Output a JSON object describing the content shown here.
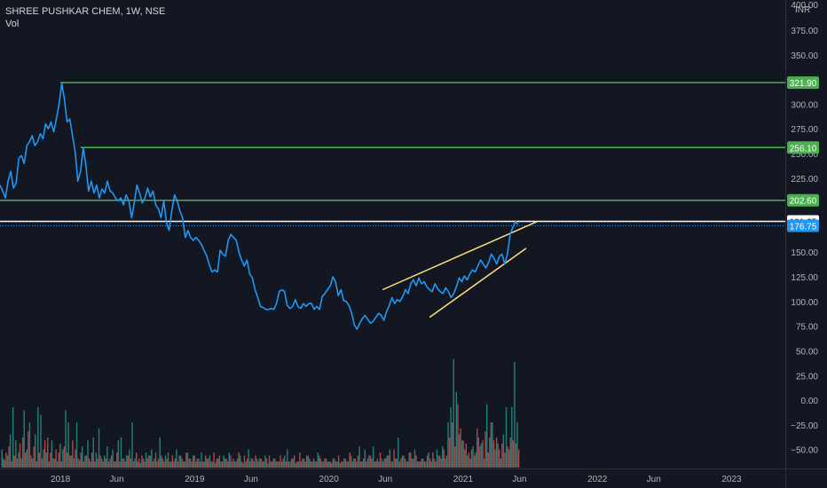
{
  "header": {
    "symbol_line": "SHREE PUSHKAR CHEM, 1W, NSE",
    "volume_label": "Vol",
    "currency": "INR"
  },
  "colors": {
    "price_line": "#2196f3",
    "level_line": "#4caf50",
    "current_line": "#ffffff",
    "trend_line": "#ffe082",
    "vol_up": "#26a69a",
    "vol_down": "#ef5350"
  },
  "chart_data": {
    "type": "line",
    "title": "SHREE PUSHKAR CHEM, 1W, NSE",
    "price_axis": {
      "ticks": [
        375,
        350,
        325,
        300,
        275,
        250,
        225,
        200,
        175,
        150,
        125,
        100,
        75,
        50,
        25,
        0,
        -25,
        -50
      ],
      "tick_labels": [
        "375.00",
        "350.00",
        "325.00",
        "300.00",
        "275.00",
        "250.00",
        "225.00",
        "200.00",
        "175.00",
        "150.00",
        "125.00",
        "100.00",
        "75.00",
        "50.00",
        "25.00",
        "0.00",
        "−25.00",
        "−50.00"
      ],
      "top_label": "400.00",
      "range": [
        -62,
        402
      ]
    },
    "time_axis": {
      "labels": [
        {
          "label": "2018",
          "t": 2018.0
        },
        {
          "label": "Jun",
          "t": 2018.42
        },
        {
          "label": "2019",
          "t": 2019.0
        },
        {
          "label": "Jun",
          "t": 2019.42
        },
        {
          "label": "2020",
          "t": 2020.0
        },
        {
          "label": "Jun",
          "t": 2020.42
        },
        {
          "label": "2021",
          "t": 2021.0
        },
        {
          "label": "Jun",
          "t": 2021.42
        },
        {
          "label": "2022",
          "t": 2022.0
        },
        {
          "label": "Jun",
          "t": 2022.42
        },
        {
          "label": "2023",
          "t": 2023.0
        }
      ],
      "range": [
        2017.55,
        2023.4
      ]
    },
    "horizontal_levels": [
      {
        "value": 321.9,
        "label": "321.90",
        "start_t": 2018.0
      },
      {
        "value": 256.1,
        "label": "256.10",
        "start_t": 2018.15
      },
      {
        "value": 202.6,
        "label": "202.60",
        "start_t": 2017.55
      }
    ],
    "current_price": {
      "value": 181.25,
      "label": "181.25"
    },
    "last_close": {
      "value": 176.75,
      "label": "176.75"
    },
    "trend_lines": [
      {
        "from": {
          "t": 2020.4,
          "v": 112
        },
        "to": {
          "t": 2021.55,
          "v": 181
        }
      },
      {
        "from": {
          "t": 2020.75,
          "v": 84
        },
        "to": {
          "t": 2021.47,
          "v": 154
        }
      }
    ],
    "series": [
      {
        "t": [
          2017.55,
          2017.57,
          2017.59,
          2017.61,
          2017.63,
          2017.65,
          2017.67,
          2017.69,
          2017.71,
          2017.73,
          2017.75,
          2017.77,
          2017.79,
          2017.81,
          2017.83,
          2017.85,
          2017.87,
          2017.89,
          2017.91,
          2017.93,
          2017.95,
          2017.97,
          2017.99,
          2018.01,
          2018.03,
          2018.05,
          2018.07,
          2018.09,
          2018.11,
          2018.13,
          2018.15,
          2018.17,
          2018.19,
          2018.21,
          2018.23,
          2018.25,
          2018.27,
          2018.29,
          2018.31,
          2018.33,
          2018.35,
          2018.37,
          2018.39,
          2018.41,
          2018.43,
          2018.45,
          2018.47,
          2018.49,
          2018.51,
          2018.53,
          2018.55,
          2018.57,
          2018.59,
          2018.61,
          2018.63,
          2018.65,
          2018.67,
          2018.69,
          2018.71,
          2018.73,
          2018.75,
          2018.77,
          2018.79,
          2018.81,
          2018.83,
          2018.85,
          2018.87,
          2018.89,
          2018.91,
          2018.93,
          2018.95,
          2018.97,
          2018.99,
          2019.01,
          2019.03,
          2019.05,
          2019.07,
          2019.09,
          2019.11,
          2019.13,
          2019.15,
          2019.17,
          2019.19,
          2019.21,
          2019.23,
          2019.25,
          2019.27,
          2019.29,
          2019.31,
          2019.33,
          2019.35,
          2019.37,
          2019.39,
          2019.41,
          2019.43,
          2019.45,
          2019.47,
          2019.49,
          2019.51,
          2019.53,
          2019.55,
          2019.57,
          2019.59,
          2019.61,
          2019.63,
          2019.65,
          2019.67,
          2019.69,
          2019.71,
          2019.73,
          2019.75,
          2019.77,
          2019.79,
          2019.81,
          2019.83,
          2019.85,
          2019.87,
          2019.89,
          2019.91,
          2019.93,
          2019.95,
          2019.97,
          2019.99,
          2020.01,
          2020.03,
          2020.05,
          2020.07,
          2020.09,
          2020.11,
          2020.13,
          2020.15,
          2020.17,
          2020.19,
          2020.21,
          2020.23,
          2020.25,
          2020.27,
          2020.29,
          2020.31,
          2020.33,
          2020.35,
          2020.37,
          2020.39,
          2020.41,
          2020.43,
          2020.45,
          2020.47,
          2020.49,
          2020.51,
          2020.53,
          2020.55,
          2020.57,
          2020.59,
          2020.61,
          2020.63,
          2020.65,
          2020.67,
          2020.69,
          2020.71,
          2020.73,
          2020.75,
          2020.77,
          2020.79,
          2020.81,
          2020.83,
          2020.85,
          2020.87,
          2020.89,
          2020.91,
          2020.93,
          2020.95,
          2020.97,
          2020.99,
          2021.01,
          2021.03,
          2021.05,
          2021.07,
          2021.09,
          2021.11,
          2021.13,
          2021.15,
          2021.17,
          2021.19,
          2021.21,
          2021.23,
          2021.25,
          2021.27,
          2021.29,
          2021.31,
          2021.33,
          2021.35,
          2021.37,
          2021.39,
          2021.41
        ],
        "values": [
          218,
          212,
          205,
          222,
          232,
          215,
          220,
          245,
          248,
          240,
          258,
          262,
          268,
          258,
          262,
          270,
          265,
          280,
          275,
          282,
          272,
          285,
          300,
          321,
          305,
          282,
          285,
          268,
          252,
          222,
          232,
          256,
          238,
          212,
          222,
          210,
          218,
          205,
          214,
          210,
          222,
          212,
          210,
          205,
          202,
          205,
          198,
          208,
          202,
          185,
          200,
          218,
          210,
          200,
          205,
          215,
          206,
          212,
          198,
          194,
          185,
          202,
          180,
          172,
          192,
          208,
          202,
          192,
          185,
          165,
          172,
          165,
          162,
          165,
          162,
          158,
          152,
          146,
          137,
          130,
          132,
          130,
          152,
          148,
          146,
          162,
          168,
          165,
          162,
          150,
          142,
          136,
          142,
          128,
          124,
          112,
          104,
          95,
          94,
          92,
          92,
          93,
          92,
          98,
          110,
          112,
          110,
          96,
          93,
          95,
          102,
          95,
          93,
          98,
          95,
          98,
          98,
          92,
          95,
          92,
          105,
          108,
          112,
          116,
          125,
          120,
          106,
          112,
          101,
          100,
          96,
          88,
          76,
          72,
          78,
          83,
          86,
          82,
          78,
          80,
          84,
          88,
          86,
          81,
          90,
          96,
          104,
          98,
          102,
          100,
          105,
          112,
          108,
          118,
          122,
          116,
          124,
          118,
          120,
          115,
          112,
          110,
          118,
          113,
          110,
          108,
          114,
          110,
          104,
          108,
          115,
          124,
          120,
          126,
          122,
          128,
          132,
          130,
          136,
          142,
          138,
          134,
          140,
          148,
          144,
          138,
          146,
          148,
          138,
          148,
          168,
          175,
          181,
          178
        ]
      }
    ],
    "volume": {
      "up": [
        12,
        5,
        8,
        22,
        40,
        18,
        10,
        6,
        38,
        12,
        30,
        6,
        22,
        40,
        35,
        12,
        10,
        4,
        18,
        6,
        4,
        16,
        12,
        38,
        30,
        8,
        6,
        30,
        5,
        14,
        8,
        18,
        4,
        20,
        10,
        26,
        6,
        8,
        14,
        6,
        12,
        4,
        18,
        20,
        6,
        8,
        12,
        30,
        6,
        4,
        3,
        6,
        10,
        8,
        12,
        6,
        4,
        20,
        6,
        8,
        10,
        4,
        4,
        12,
        8,
        6,
        4,
        10,
        6,
        8,
        4,
        6,
        10,
        4,
        6,
        8,
        4,
        3,
        6,
        4,
        8,
        6,
        10,
        4,
        4,
        6,
        8,
        3,
        4,
        12,
        6,
        4,
        6,
        6,
        4,
        8,
        3,
        4,
        6,
        4,
        4,
        4,
        8,
        12,
        4,
        6,
        3,
        4,
        4,
        6,
        8,
        6,
        4,
        4,
        10,
        6,
        4,
        6,
        4,
        3,
        6,
        4,
        3,
        4,
        6,
        4,
        8,
        6,
        4,
        14,
        4,
        12,
        6,
        8,
        14,
        4,
        4,
        6,
        6,
        8,
        12,
        4,
        6,
        20,
        6,
        8,
        4,
        10,
        6,
        12,
        4,
        4,
        6,
        4,
        10,
        4,
        6,
        12,
        8,
        14,
        6,
        30,
        40,
        72,
        50,
        22,
        18,
        12,
        8,
        6,
        14,
        10,
        20,
        16,
        6,
        42,
        20,
        30,
        12,
        16,
        6,
        22,
        40,
        12,
        40,
        70,
        30
      ],
      "down": [
        6,
        10,
        14,
        4,
        8,
        6,
        16,
        20,
        10,
        24,
        8,
        14,
        4,
        10,
        6,
        18,
        20,
        10,
        6,
        12,
        10,
        4,
        14,
        10,
        8,
        18,
        12,
        6,
        10,
        4,
        8,
        6,
        10,
        4,
        6,
        8,
        4,
        6,
        4,
        8,
        4,
        10,
        4,
        6,
        4,
        8,
        6,
        4,
        10,
        6,
        8,
        4,
        6,
        8,
        4,
        10,
        6,
        8,
        4,
        6,
        4,
        8,
        6,
        4,
        8,
        4,
        10,
        6,
        4,
        8,
        6,
        4,
        4,
        8,
        6,
        4,
        10,
        6,
        8,
        4,
        6,
        4,
        8,
        6,
        4,
        10,
        4,
        8,
        6,
        4,
        6,
        8,
        4,
        6,
        4,
        6,
        8,
        4,
        6,
        4,
        8,
        6,
        4,
        4,
        6,
        8,
        4,
        10,
        6,
        4,
        8,
        4,
        6,
        4,
        8,
        4,
        6,
        4,
        4,
        6,
        4,
        8,
        4,
        6,
        4,
        10,
        4,
        6,
        8,
        4,
        6,
        4,
        8,
        6,
        4,
        6,
        10,
        4,
        6,
        8,
        4,
        12,
        6,
        4,
        8,
        6,
        4,
        10,
        6,
        8,
        4,
        6,
        4,
        8,
        6,
        10,
        4,
        8,
        6,
        12,
        8,
        20,
        30,
        14,
        42,
        26,
        18,
        16,
        10,
        12,
        8,
        26,
        14,
        18,
        24,
        10,
        30,
        18,
        20,
        12,
        16,
        10,
        14,
        20,
        18,
        16,
        12
      ]
    },
    "volume_axis_note": "volume is drawn in the lower pane sharing the price axis area"
  }
}
